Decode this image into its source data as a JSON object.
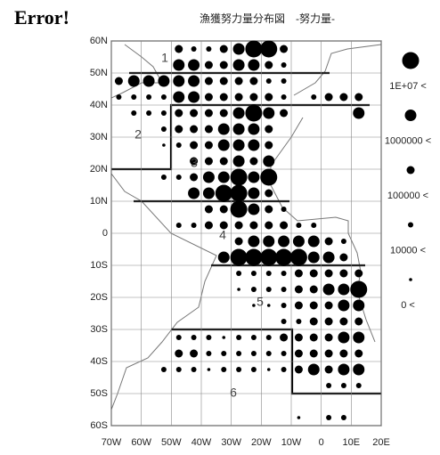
{
  "header": {
    "error": "Error!",
    "title": "漁獲努力量分布図　-努力量-"
  },
  "map": {
    "lonlim": [
      -70,
      20
    ],
    "latlim": [
      -60,
      60
    ],
    "xticks": [
      {
        "value": -70,
        "label": "70W"
      },
      {
        "value": -60,
        "label": "60W"
      },
      {
        "value": -50,
        "label": "50W"
      },
      {
        "value": -40,
        "label": "40W"
      },
      {
        "value": -30,
        "label": "30W"
      },
      {
        "value": -20,
        "label": "20W"
      },
      {
        "value": -10,
        "label": "10W"
      },
      0,
      {
        "value": 10,
        "label": "10E"
      },
      {
        "value": 20,
        "label": "20E"
      }
    ],
    "yticks": [
      {
        "value": 60,
        "label": "60N"
      },
      {
        "value": 50,
        "label": "50N"
      },
      {
        "value": 40,
        "label": "40N"
      },
      {
        "value": 30,
        "label": "30N"
      },
      {
        "value": 20,
        "label": "20N"
      },
      {
        "value": 10,
        "label": "10N"
      },
      0,
      {
        "value": -10,
        "label": "10S"
      },
      {
        "value": -20,
        "label": "20S"
      },
      {
        "value": -30,
        "label": "30S"
      },
      {
        "value": -40,
        "label": "40S"
      },
      {
        "value": -50,
        "label": "50S"
      },
      {
        "value": -60,
        "label": "60S"
      }
    ],
    "regions": [
      "1",
      "2",
      "3",
      "4",
      "5",
      "6"
    ],
    "legend": [
      "0 <",
      "10000 <",
      "100000 <",
      "1000000 <",
      "1E+07 <"
    ],
    "dots": {
      "lons": [
        -67.5,
        -62.5,
        -57.5,
        -52.5,
        -47.5,
        -42.5,
        -37.5,
        -32.5,
        -27.5,
        -22.5,
        -17.5,
        -12.5,
        -7.5,
        -2.5,
        2.5,
        7.5,
        12.5,
        17.5
      ],
      "lats": [
        57.5,
        52.5,
        47.5,
        42.5,
        37.5,
        32.5,
        27.5,
        22.5,
        17.5,
        12.5,
        7.5,
        2.5,
        -2.5,
        -7.5,
        -12.5,
        -17.5,
        -22.5,
        -27.5,
        -32.5,
        -37.5,
        -42.5,
        -47.5,
        -52.5,
        -57.5
      ],
      "sizes": [
        [
          0,
          0,
          0,
          0,
          3,
          2,
          2,
          3,
          4,
          5,
          5,
          3,
          0,
          0,
          0,
          0,
          0,
          0
        ],
        [
          0,
          0,
          0,
          0,
          4,
          4,
          3,
          3,
          4,
          4,
          3,
          2,
          0,
          0,
          0,
          0,
          0,
          0
        ],
        [
          3,
          4,
          4,
          4,
          4,
          4,
          3,
          3,
          3,
          3,
          2,
          2,
          0,
          0,
          0,
          0,
          0,
          0
        ],
        [
          2,
          2,
          2,
          2,
          4,
          4,
          3,
          3,
          3,
          3,
          3,
          2,
          0,
          2,
          3,
          3,
          3,
          0
        ],
        [
          0,
          2,
          2,
          2,
          3,
          3,
          3,
          3,
          4,
          5,
          4,
          3,
          0,
          0,
          0,
          0,
          4,
          0
        ],
        [
          0,
          0,
          0,
          2,
          3,
          3,
          3,
          4,
          4,
          4,
          3,
          0,
          0,
          0,
          0,
          0,
          0,
          0
        ],
        [
          0,
          0,
          0,
          1,
          2,
          3,
          3,
          4,
          4,
          4,
          3,
          0,
          0,
          0,
          0,
          0,
          0,
          0
        ],
        [
          0,
          0,
          0,
          0,
          0,
          3,
          3,
          3,
          4,
          3,
          4,
          0,
          0,
          0,
          0,
          0,
          0,
          0
        ],
        [
          0,
          0,
          0,
          2,
          2,
          3,
          4,
          4,
          5,
          4,
          5,
          0,
          0,
          0,
          0,
          0,
          0,
          0
        ],
        [
          0,
          0,
          0,
          0,
          0,
          4,
          4,
          5,
          5,
          4,
          3,
          0,
          0,
          0,
          0,
          0,
          0,
          0
        ],
        [
          0,
          0,
          0,
          0,
          0,
          0,
          3,
          3,
          5,
          4,
          3,
          2,
          0,
          0,
          0,
          0,
          0,
          0
        ],
        [
          0,
          0,
          0,
          0,
          2,
          2,
          3,
          3,
          3,
          3,
          3,
          3,
          2,
          2,
          0,
          0,
          0,
          0
        ],
        [
          0,
          0,
          0,
          0,
          0,
          0,
          0,
          0,
          3,
          4,
          4,
          4,
          4,
          4,
          3,
          2,
          0,
          0
        ],
        [
          0,
          0,
          0,
          0,
          0,
          0,
          0,
          4,
          5,
          5,
          5,
          5,
          5,
          4,
          4,
          3,
          0,
          0
        ],
        [
          0,
          0,
          0,
          0,
          0,
          0,
          0,
          0,
          2,
          2,
          2,
          2,
          3,
          3,
          3,
          3,
          3,
          0
        ],
        [
          0,
          0,
          0,
          0,
          0,
          0,
          0,
          0,
          1,
          2,
          2,
          2,
          3,
          3,
          4,
          4,
          5,
          0
        ],
        [
          0,
          0,
          0,
          0,
          0,
          0,
          0,
          0,
          0,
          1,
          1,
          2,
          3,
          3,
          3,
          4,
          4,
          0
        ],
        [
          0,
          0,
          0,
          0,
          0,
          0,
          0,
          0,
          0,
          0,
          0,
          2,
          2,
          3,
          3,
          3,
          3,
          0
        ],
        [
          0,
          0,
          0,
          0,
          2,
          2,
          2,
          1,
          2,
          2,
          2,
          3,
          3,
          3,
          3,
          4,
          4,
          0
        ],
        [
          0,
          0,
          0,
          0,
          3,
          3,
          2,
          2,
          2,
          2,
          2,
          2,
          3,
          3,
          3,
          3,
          3,
          0
        ],
        [
          0,
          0,
          0,
          2,
          2,
          2,
          1,
          2,
          2,
          2,
          1,
          2,
          3,
          4,
          3,
          4,
          4,
          0
        ],
        [
          0,
          0,
          0,
          0,
          0,
          0,
          0,
          0,
          0,
          0,
          0,
          0,
          0,
          0,
          2,
          2,
          2,
          0
        ],
        [
          0,
          0,
          0,
          0,
          0,
          0,
          0,
          0,
          0,
          0,
          0,
          0,
          0,
          0,
          0,
          0,
          0,
          0
        ],
        [
          0,
          0,
          0,
          0,
          0,
          0,
          0,
          0,
          0,
          0,
          0,
          0,
          1,
          0,
          2,
          2,
          0,
          0
        ]
      ]
    }
  }
}
